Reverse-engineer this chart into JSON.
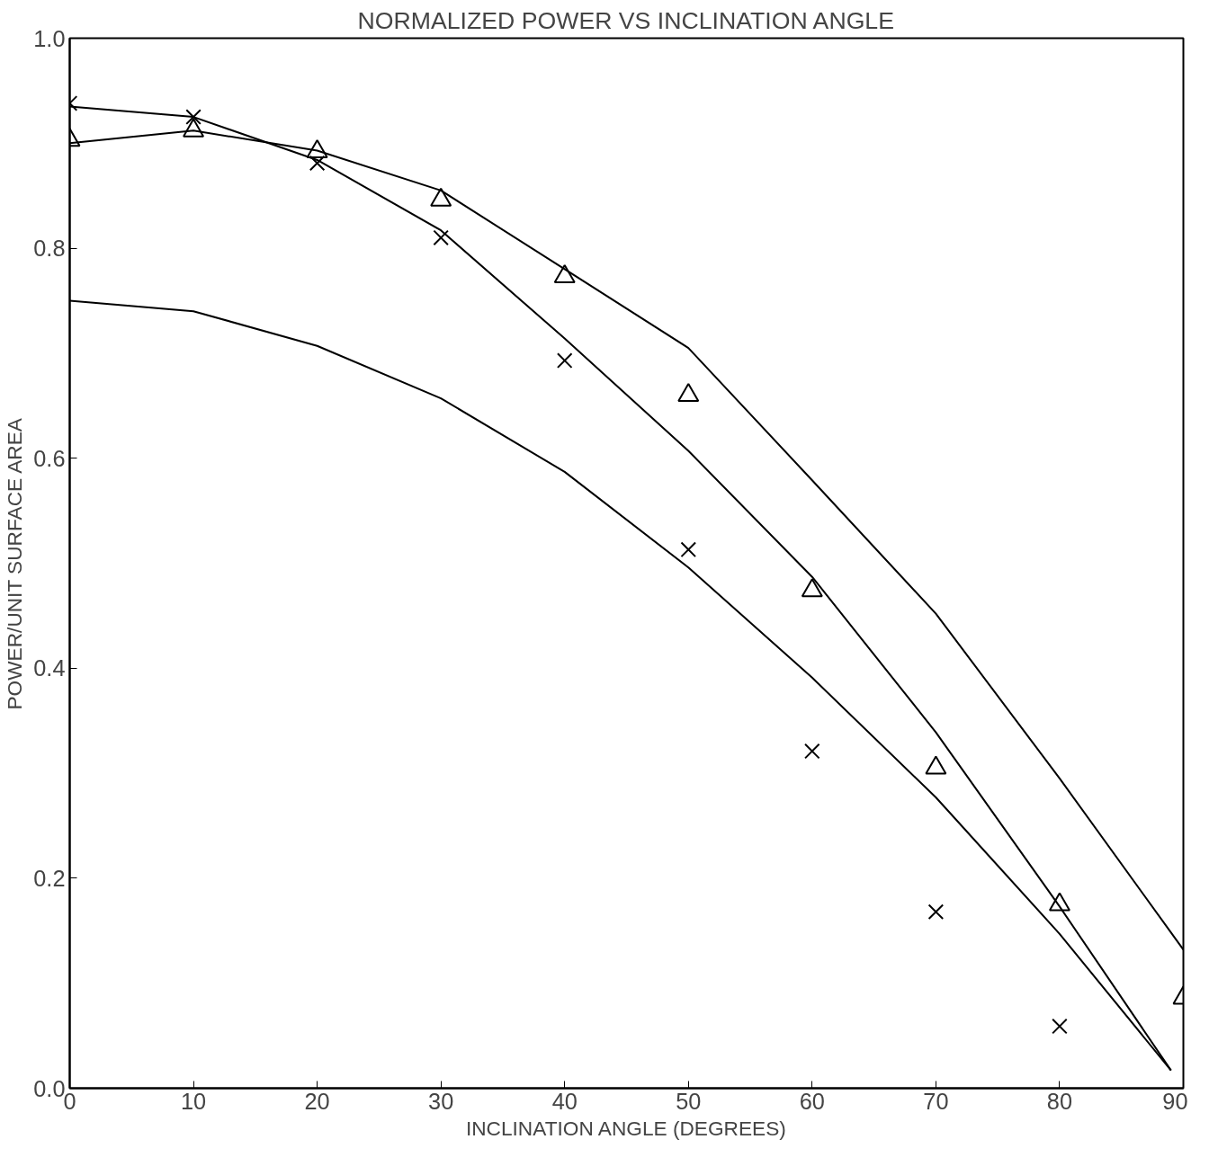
{
  "chart_data": {
    "type": "line",
    "title": "NORMALIZED POWER VS INCLINATION ANGLE",
    "xlabel": "INCLINATION ANGLE (DEGREES)",
    "ylabel": "POWER/UNIT SURFACE AREA",
    "xlim": [
      0,
      90
    ],
    "ylim": [
      0,
      1
    ],
    "xticks": [
      0,
      10,
      20,
      30,
      40,
      50,
      60,
      70,
      80,
      90
    ],
    "yticks": [
      {
        "value": 0,
        "label": "0.0"
      },
      {
        "value": 0.2,
        "label": "0.2"
      },
      {
        "value": 0.4,
        "label": "0.4"
      },
      {
        "value": 0.6,
        "label": "0.6"
      },
      {
        "value": 0.8,
        "label": "0.8"
      },
      {
        "value": 1,
        "label": "1.0"
      }
    ],
    "grid": false,
    "series": [
      {
        "color": "#000000",
        "marker": "none",
        "line_style": "solid",
        "x": [
          0,
          10,
          20,
          30,
          40,
          50,
          60,
          70,
          80,
          90
        ],
        "values": [
          0.9,
          0.912,
          0.893,
          0.855,
          0.78,
          0.705,
          0.579,
          0.452,
          0.295,
          0.132
        ]
      },
      {
        "color": "#000000",
        "marker": "none",
        "line_style": "solid",
        "x": [
          0,
          10,
          20,
          30,
          40,
          50,
          60,
          70,
          80,
          89
        ],
        "values": [
          0.935,
          0.925,
          0.884,
          0.817,
          0.714,
          0.607,
          0.487,
          0.339,
          0.173,
          0.017
        ]
      },
      {
        "color": "#000000",
        "marker": "none",
        "line_style": "solid",
        "x": [
          0,
          10,
          20,
          30,
          40,
          50,
          60,
          70,
          80,
          89
        ],
        "values": [
          0.75,
          0.74,
          0.707,
          0.657,
          0.587,
          0.496,
          0.391,
          0.277,
          0.147,
          0.017
        ]
      },
      {
        "type": "scatter",
        "color": "#000000",
        "marker": "cross",
        "x": [
          0,
          10,
          20,
          30,
          40,
          50,
          60,
          70,
          80
        ],
        "values": [
          0.938,
          0.925,
          0.881,
          0.81,
          0.693,
          0.513,
          0.321,
          0.168,
          0.059
        ]
      },
      {
        "type": "scatter",
        "color": "#000000",
        "marker": "triangle",
        "x": [
          0,
          10,
          20,
          30,
          40,
          50,
          60,
          70,
          80,
          90
        ],
        "values": [
          0.903,
          0.912,
          0.892,
          0.846,
          0.773,
          0.66,
          0.474,
          0.305,
          0.175,
          0.086
        ]
      }
    ]
  }
}
